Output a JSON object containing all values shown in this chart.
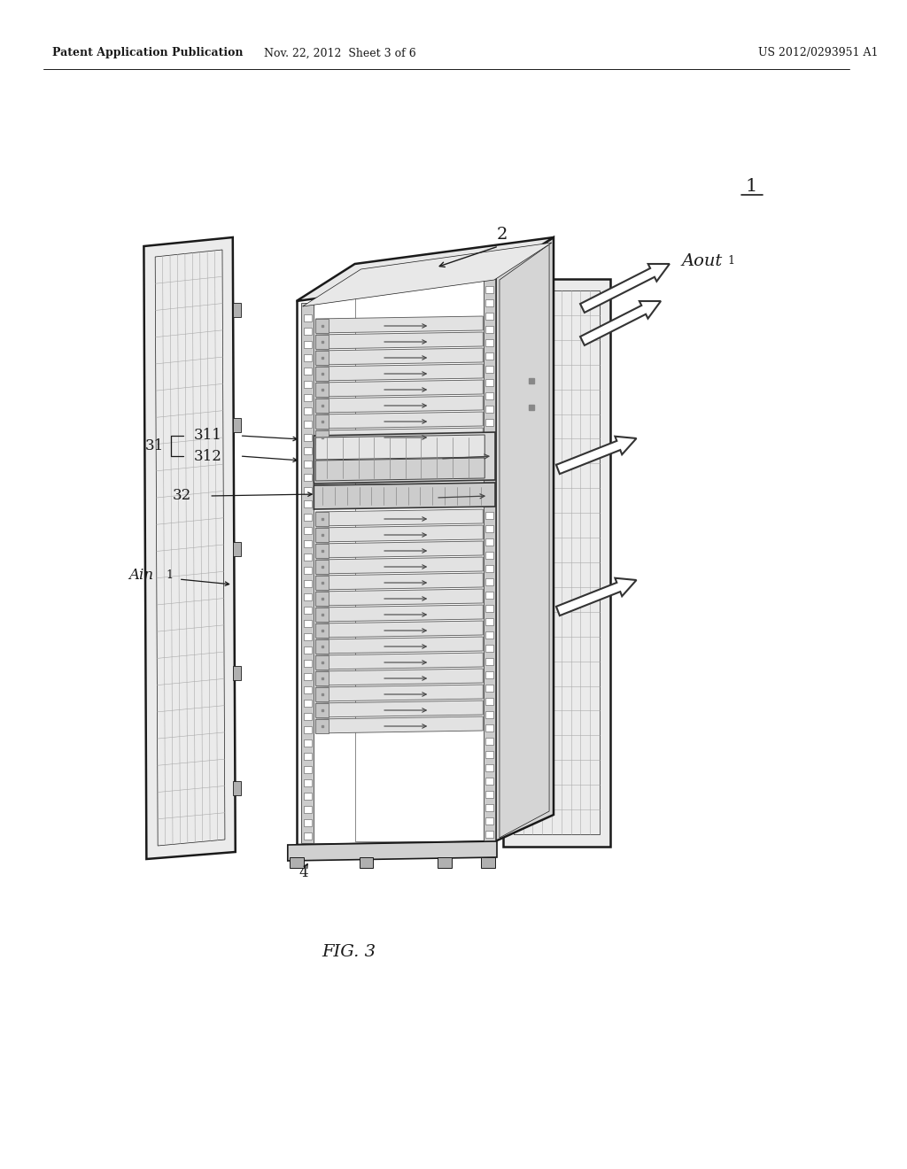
{
  "bg_color": "#ffffff",
  "line_color": "#1a1a1a",
  "header_left": "Patent Application Publication",
  "header_mid": "Nov. 22, 2012  Sheet 3 of 6",
  "header_right": "US 2012/0293951 A1",
  "fig_label": "FIG. 3",
  "label_1": "1",
  "label_2": "2",
  "label_31": "31",
  "label_311": "311",
  "label_312": "312",
  "label_32": "32",
  "label_ain": "Ain",
  "label_ain_sub": "1",
  "label_aout": "Aout",
  "label_aout_sub": "1",
  "label_4": "4",
  "lw_heavy": 1.8,
  "lw_med": 1.2,
  "lw_light": 0.7,
  "lw_thin": 0.5,
  "gray_light": "#e8e8e8",
  "gray_med": "#d0d0d0",
  "gray_dark": "#b0b0b0",
  "gray_door": "#ebebeb",
  "gray_side": "#d5d5d5"
}
